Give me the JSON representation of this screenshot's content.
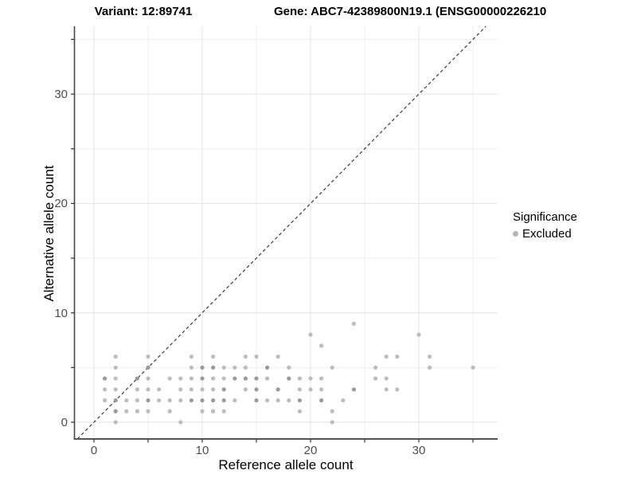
{
  "titles": {
    "variant": "Variant: 12:89741",
    "gene": "Gene: ABC7-42389800N19.1 (ENSG00000226210"
  },
  "legend": {
    "title": "Significance",
    "items": [
      {
        "label": "Excluded",
        "color": "#b5b5b5"
      }
    ]
  },
  "chart_data": {
    "type": "scatter",
    "xlabel": "Reference allele count",
    "ylabel": "Alternative allele count",
    "x_tick_labels": [
      "0",
      "10",
      "20",
      "30"
    ],
    "y_tick_labels": [
      "0",
      "10",
      "20",
      "30"
    ],
    "x_major_ticks": [
      0,
      10,
      20,
      30
    ],
    "y_major_ticks": [
      0,
      10,
      20,
      30
    ],
    "x_minor_ticks": [
      5,
      15,
      25,
      35
    ],
    "y_minor_ticks": [
      5,
      15,
      25,
      35
    ],
    "xlim": [
      -1.8,
      37.3
    ],
    "ylim": [
      -1.53,
      36.2
    ],
    "grid": true,
    "legend_position": "right",
    "identity_line": {
      "style": "dashed",
      "slope": 1,
      "intercept": 0,
      "color": "#2b2b2b"
    },
    "point_colors": {
      "l": "#bdbdbd",
      "d": "#9a9a9a"
    },
    "series": [
      {
        "name": "Excluded",
        "points": [
          [
            2,
            0,
            "l"
          ],
          [
            8,
            0,
            "l"
          ],
          [
            22,
            0,
            "l"
          ],
          [
            2,
            1,
            "d"
          ],
          [
            3,
            1,
            "l"
          ],
          [
            4,
            1,
            "l"
          ],
          [
            5,
            1,
            "l"
          ],
          [
            7,
            1,
            "l"
          ],
          [
            10,
            1,
            "l"
          ],
          [
            11,
            1,
            "l"
          ],
          [
            12,
            1,
            "l"
          ],
          [
            19,
            1,
            "l"
          ],
          [
            22,
            1,
            "l"
          ],
          [
            1,
            2,
            "l"
          ],
          [
            2,
            2,
            "d"
          ],
          [
            3,
            2,
            "l"
          ],
          [
            4,
            2,
            "l"
          ],
          [
            5,
            2,
            "d"
          ],
          [
            6,
            2,
            "l"
          ],
          [
            7,
            2,
            "l"
          ],
          [
            8,
            2,
            "l"
          ],
          [
            9,
            2,
            "d"
          ],
          [
            10,
            2,
            "d"
          ],
          [
            11,
            2,
            "d"
          ],
          [
            12,
            2,
            "d"
          ],
          [
            13,
            2,
            "l"
          ],
          [
            15,
            2,
            "d"
          ],
          [
            16,
            2,
            "l"
          ],
          [
            17,
            2,
            "l"
          ],
          [
            18,
            2,
            "l"
          ],
          [
            19,
            2,
            "d"
          ],
          [
            21,
            2,
            "d"
          ],
          [
            23,
            2,
            "l"
          ],
          [
            1,
            3,
            "l"
          ],
          [
            2,
            3,
            "l"
          ],
          [
            4,
            3,
            "l"
          ],
          [
            5,
            3,
            "l"
          ],
          [
            6,
            3,
            "l"
          ],
          [
            8,
            3,
            "l"
          ],
          [
            9,
            3,
            "l"
          ],
          [
            10,
            3,
            "l"
          ],
          [
            11,
            3,
            "l"
          ],
          [
            12,
            3,
            "d"
          ],
          [
            14,
            3,
            "l"
          ],
          [
            15,
            3,
            "d"
          ],
          [
            17,
            3,
            "d"
          ],
          [
            19,
            3,
            "l"
          ],
          [
            20,
            3,
            "l"
          ],
          [
            21,
            3,
            "l"
          ],
          [
            24,
            3,
            "d"
          ],
          [
            27,
            3,
            "l"
          ],
          [
            28,
            3,
            "l"
          ],
          [
            1,
            4,
            "d"
          ],
          [
            2,
            4,
            "l"
          ],
          [
            4,
            4,
            "d"
          ],
          [
            5,
            4,
            "l"
          ],
          [
            7,
            4,
            "l"
          ],
          [
            8,
            4,
            "l"
          ],
          [
            9,
            4,
            "l"
          ],
          [
            10,
            4,
            "d"
          ],
          [
            11,
            4,
            "l"
          ],
          [
            12,
            4,
            "l"
          ],
          [
            13,
            4,
            "d"
          ],
          [
            14,
            4,
            "d"
          ],
          [
            15,
            4,
            "d"
          ],
          [
            16,
            4,
            "l"
          ],
          [
            18,
            4,
            "d"
          ],
          [
            19,
            4,
            "l"
          ],
          [
            20,
            4,
            "l"
          ],
          [
            21,
            4,
            "l"
          ],
          [
            26,
            4,
            "l"
          ],
          [
            27,
            4,
            "l"
          ],
          [
            2,
            5,
            "l"
          ],
          [
            5,
            5,
            "d"
          ],
          [
            9,
            5,
            "l"
          ],
          [
            10,
            5,
            "d"
          ],
          [
            11,
            5,
            "d"
          ],
          [
            12,
            5,
            "l"
          ],
          [
            13,
            5,
            "l"
          ],
          [
            14,
            5,
            "l"
          ],
          [
            16,
            5,
            "d"
          ],
          [
            18,
            5,
            "l"
          ],
          [
            22,
            5,
            "l"
          ],
          [
            26,
            5,
            "l"
          ],
          [
            31,
            5,
            "l"
          ],
          [
            35,
            5,
            "l"
          ],
          [
            2,
            6,
            "l"
          ],
          [
            5,
            6,
            "l"
          ],
          [
            9,
            6,
            "l"
          ],
          [
            11,
            6,
            "l"
          ],
          [
            14,
            6,
            "l"
          ],
          [
            15,
            6,
            "l"
          ],
          [
            17,
            6,
            "l"
          ],
          [
            27,
            6,
            "l"
          ],
          [
            28,
            6,
            "l"
          ],
          [
            31,
            6,
            "l"
          ],
          [
            21,
            7,
            "l"
          ],
          [
            20,
            8,
            "l"
          ],
          [
            30,
            8,
            "l"
          ],
          [
            24,
            9,
            "l"
          ]
        ]
      }
    ]
  }
}
